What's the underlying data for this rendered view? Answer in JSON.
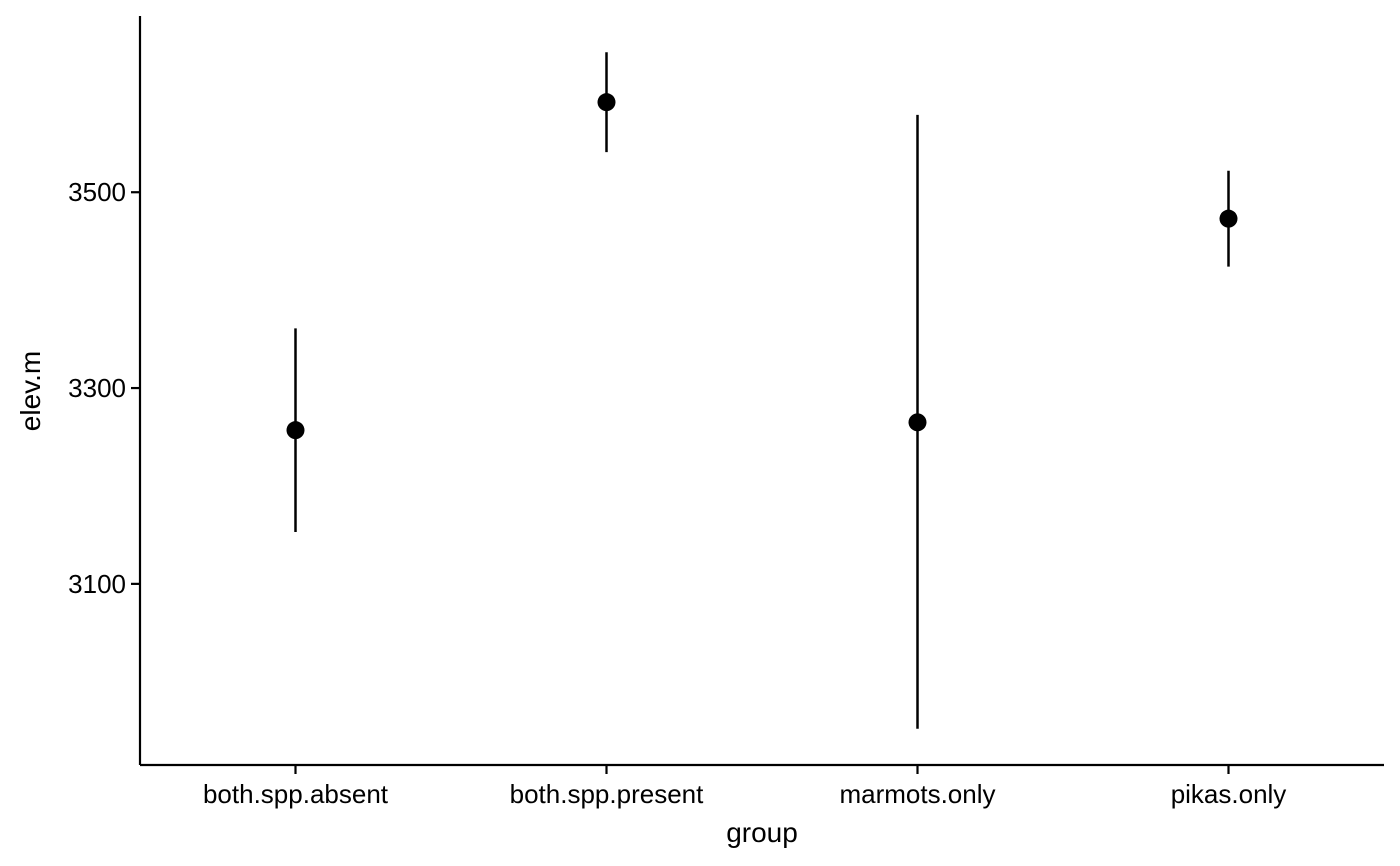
{
  "chart_data": {
    "type": "scatter",
    "title": "",
    "xlabel": "group",
    "ylabel": "elev.m",
    "categories": [
      "both.spp.absent",
      "both.spp.present",
      "marmots.only",
      "pikas.only"
    ],
    "points": [
      {
        "category": "both.spp.absent",
        "y": 3257,
        "ymin": 3153,
        "ymax": 3361
      },
      {
        "category": "both.spp.present",
        "y": 3592,
        "ymin": 3541,
        "ymax": 3643
      },
      {
        "category": "marmots.only",
        "y": 3265,
        "ymin": 2952,
        "ymax": 3579
      },
      {
        "category": "pikas.only",
        "y": 3473,
        "ymin": 3424,
        "ymax": 3522
      }
    ],
    "yticks": [
      "3100",
      "3300",
      "3500"
    ],
    "ylim": [
      2915,
      3680
    ],
    "grid": false,
    "legend": "none",
    "colors": {
      "points": "#000000",
      "axes": "#000000"
    }
  }
}
